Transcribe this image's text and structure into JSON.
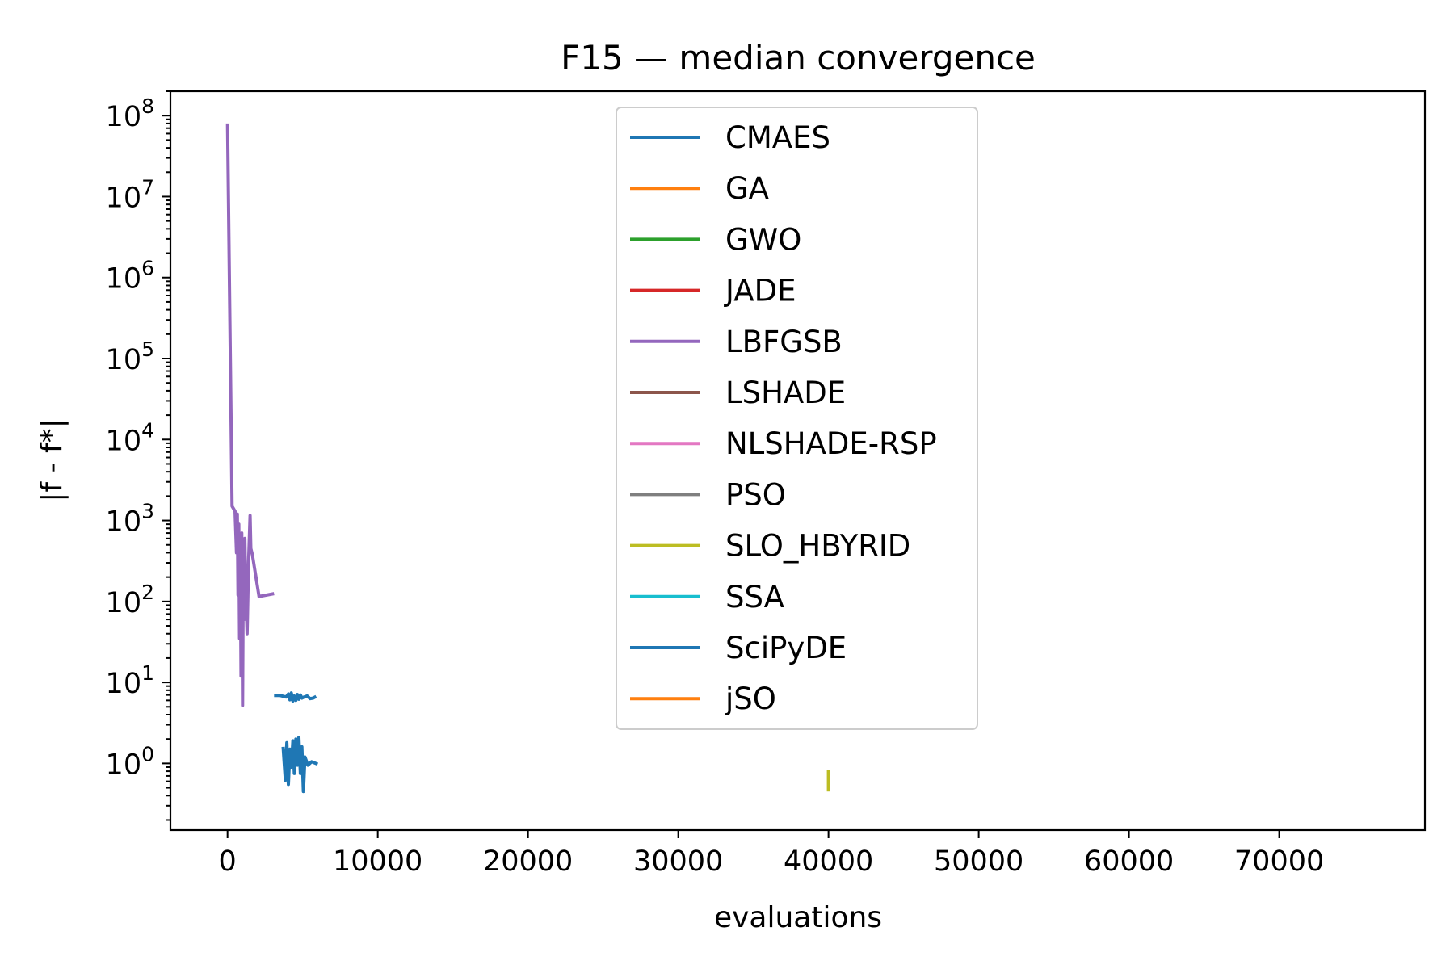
{
  "chart_data": {
    "type": "line",
    "title": "F15 — median convergence",
    "xlabel": "evaluations",
    "ylabel": "|f - f*|",
    "xlim": [
      -3800,
      79700
    ],
    "ylim": [
      0.15,
      200000000.0
    ],
    "yscale": "log",
    "grid": false,
    "legend_position": "top-center",
    "x_ticks": [
      0,
      10000,
      20000,
      30000,
      40000,
      50000,
      60000,
      70000
    ],
    "x_tick_labels": [
      "0",
      "10000",
      "20000",
      "30000",
      "40000",
      "50000",
      "60000",
      "70000"
    ],
    "y_ticks": [
      1,
      10,
      100,
      1000,
      10000,
      100000,
      1000000,
      10000000,
      100000000
    ],
    "y_tick_bases": [
      "10",
      "10",
      "10",
      "10",
      "10",
      "10",
      "10",
      "10",
      "10"
    ],
    "y_tick_exponents": [
      "0",
      "1",
      "2",
      "3",
      "4",
      "5",
      "6",
      "7",
      "8"
    ],
    "series": [
      {
        "name": "CMAES",
        "color": "#1f77b4",
        "x": [
          3700,
          3850,
          3950,
          4050,
          4150,
          4250,
          4350,
          4450,
          4550,
          4650,
          4750,
          4850,
          4950,
          5050,
          5150,
          5350,
          5600,
          6000
        ],
        "y": [
          1.6,
          0.62,
          1.8,
          0.55,
          1.5,
          0.9,
          1.9,
          0.75,
          2.0,
          0.95,
          2.1,
          0.75,
          1.6,
          0.45,
          1.2,
          0.95,
          1.05,
          0.98
        ]
      },
      {
        "name": "GA",
        "color": "#ff7f0e",
        "x": [],
        "y": []
      },
      {
        "name": "GWO",
        "color": "#2ca02c",
        "x": [],
        "y": []
      },
      {
        "name": "JADE",
        "color": "#d62728",
        "x": [],
        "y": []
      },
      {
        "name": "LBFGSB",
        "color": "#9467bd",
        "x": [
          0,
          300,
          500,
          600,
          650,
          700,
          750,
          800,
          850,
          900,
          950,
          1000,
          1050,
          1100,
          1150,
          1200,
          1300,
          1400,
          1500,
          1550,
          1650,
          2100,
          3100
        ],
        "y": [
          80000000,
          1500,
          1300,
          400,
          1200,
          120,
          900,
          35,
          500,
          12,
          700,
          5.2,
          300,
          60,
          600,
          180,
          40,
          300,
          1150,
          450,
          380,
          115,
          125
        ]
      },
      {
        "name": "LSHADE",
        "color": "#8c564b",
        "x": [],
        "y": []
      },
      {
        "name": "NLSHADE-RSP",
        "color": "#e377c2",
        "x": [],
        "y": []
      },
      {
        "name": "PSO",
        "color": "#7f7f7f",
        "x": [],
        "y": []
      },
      {
        "name": "SLO_HBYRID",
        "color": "#bcbd22",
        "x": [
          40000,
          40000
        ],
        "y": [
          0.45,
          0.82
        ]
      },
      {
        "name": "SSA",
        "color": "#17becf",
        "x": [],
        "y": []
      },
      {
        "name": "SciPyDE",
        "color": "#1f77b4",
        "x": [
          3100,
          3500,
          3900,
          4050,
          4150,
          4250,
          4350,
          4450,
          4550,
          4650,
          4750,
          4850,
          4950,
          5100,
          5300,
          5500,
          5700,
          5900
        ],
        "y": [
          6.9,
          6.9,
          6.6,
          7.2,
          6.1,
          7.4,
          5.9,
          6.8,
          6.0,
          7.1,
          6.2,
          7.0,
          6.4,
          6.6,
          6.8,
          6.3,
          6.4,
          6.7
        ]
      },
      {
        "name": "jSO",
        "color": "#ff7f0e",
        "x": [],
        "y": []
      }
    ]
  }
}
